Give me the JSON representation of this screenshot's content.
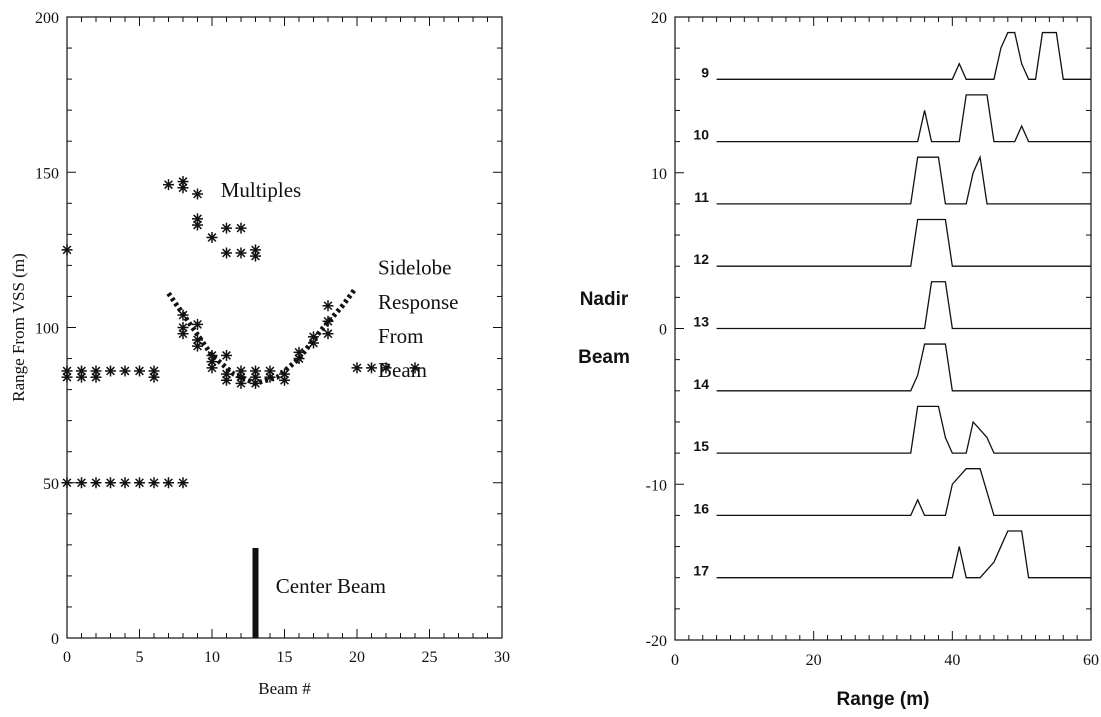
{
  "chart_data": [
    {
      "type": "scatter",
      "xlabel": "Beam #",
      "ylabel": "Range From VSS (m)",
      "xlim": [
        0,
        30
      ],
      "ylim": [
        0,
        200
      ],
      "x_ticks": [
        0,
        5,
        10,
        15,
        20,
        25,
        30
      ],
      "y_ticks": [
        0,
        50,
        100,
        150,
        200
      ],
      "marker": "asterisk",
      "points": [
        [
          0,
          125
        ],
        [
          0,
          50
        ],
        [
          1,
          50
        ],
        [
          2,
          50
        ],
        [
          3,
          50
        ],
        [
          4,
          50
        ],
        [
          5,
          50
        ],
        [
          6,
          50
        ],
        [
          7,
          50
        ],
        [
          8,
          50
        ],
        [
          0,
          86
        ],
        [
          0,
          84
        ],
        [
          1,
          86
        ],
        [
          1,
          84
        ],
        [
          2,
          86
        ],
        [
          2,
          84
        ],
        [
          3,
          86
        ],
        [
          4,
          86
        ],
        [
          5,
          86
        ],
        [
          6,
          86
        ],
        [
          6,
          84
        ],
        [
          7,
          146
        ],
        [
          8,
          147
        ],
        [
          8,
          145
        ],
        [
          9,
          143
        ],
        [
          9,
          135
        ],
        [
          9,
          133
        ],
        [
          10,
          129
        ],
        [
          11,
          132
        ],
        [
          11,
          124
        ],
        [
          12,
          132
        ],
        [
          12,
          124
        ],
        [
          13,
          125
        ],
        [
          13,
          123
        ],
        [
          8,
          104
        ],
        [
          8,
          100
        ],
        [
          8,
          98
        ],
        [
          9,
          101
        ],
        [
          9,
          96
        ],
        [
          9,
          94
        ],
        [
          10,
          91
        ],
        [
          10,
          89
        ],
        [
          10,
          87
        ],
        [
          11,
          91
        ],
        [
          11,
          85
        ],
        [
          11,
          83
        ],
        [
          12,
          86
        ],
        [
          12,
          84
        ],
        [
          12,
          82
        ],
        [
          13,
          86
        ],
        [
          13,
          84
        ],
        [
          13,
          82
        ],
        [
          14,
          86
        ],
        [
          14,
          84
        ],
        [
          15,
          85
        ],
        [
          15,
          83
        ],
        [
          16,
          92
        ],
        [
          16,
          90
        ],
        [
          17,
          97
        ],
        [
          17,
          95
        ],
        [
          18,
          107
        ],
        [
          18,
          102
        ],
        [
          18,
          98
        ],
        [
          20,
          87
        ],
        [
          21,
          87
        ],
        [
          22,
          87
        ],
        [
          24,
          87
        ]
      ],
      "sidelobe_curve": [
        [
          7,
          111
        ],
        [
          8.5,
          101
        ],
        [
          10,
          91
        ],
        [
          11.5,
          85
        ],
        [
          13,
          82
        ],
        [
          14.5,
          84
        ],
        [
          16,
          90
        ],
        [
          17.5,
          99
        ],
        [
          19,
          107
        ],
        [
          19.8,
          112
        ]
      ],
      "center_beam": {
        "x": 13,
        "y_from": 0,
        "y_to": 29
      },
      "annotations": {
        "multiples": "Multiples",
        "sidelobe": [
          "Sidelobe",
          "Response",
          "From",
          "Beam"
        ],
        "center_beam": "Center Beam"
      }
    },
    {
      "type": "line",
      "xlabel": "Range (m)",
      "ylabel": [
        "Nadir",
        "Beam"
      ],
      "xlim": [
        0,
        60
      ],
      "ylim": [
        -20,
        20
      ],
      "x_ticks": [
        0,
        20,
        40,
        60
      ],
      "y_ticks": [
        -20,
        -10,
        0,
        10,
        20
      ],
      "series": [
        {
          "name": "9",
          "baseline": 16,
          "x": [
            6,
            40,
            41,
            42,
            46,
            47,
            48,
            49,
            50,
            51,
            52,
            53,
            54,
            55,
            56,
            60
          ],
          "y": [
            16,
            16,
            17,
            16,
            16,
            18,
            19,
            19,
            17,
            16,
            16,
            19,
            19,
            19,
            16,
            16
          ]
        },
        {
          "name": "10",
          "baseline": 12,
          "x": [
            6,
            35,
            36,
            37,
            41,
            42,
            44,
            45,
            46,
            49,
            50,
            51,
            60
          ],
          "y": [
            12,
            12,
            14,
            12,
            12,
            15,
            15,
            15,
            12,
            12,
            13,
            12,
            12
          ]
        },
        {
          "name": "11",
          "baseline": 8,
          "x": [
            6,
            34,
            35,
            36,
            38,
            39,
            42,
            43,
            44,
            45,
            46,
            60
          ],
          "y": [
            8,
            8,
            11,
            11,
            11,
            8,
            8,
            10,
            11,
            8,
            8,
            8
          ]
        },
        {
          "name": "12",
          "baseline": 4,
          "x": [
            6,
            34,
            35,
            39,
            40,
            60
          ],
          "y": [
            4,
            4,
            7,
            7,
            4,
            4
          ]
        },
        {
          "name": "13",
          "baseline": 0,
          "x": [
            6,
            36,
            37,
            39,
            40,
            60
          ],
          "y": [
            0,
            0,
            3,
            3,
            0,
            0
          ]
        },
        {
          "name": "14",
          "baseline": -4,
          "x": [
            6,
            34,
            35,
            36,
            37,
            39,
            40,
            60
          ],
          "y": [
            -4,
            -4,
            -3,
            -1,
            -1,
            -1,
            -4,
            -4
          ]
        },
        {
          "name": "15",
          "baseline": -8,
          "x": [
            6,
            34,
            35,
            37,
            38,
            39,
            40,
            41,
            42,
            43,
            44,
            45,
            46,
            60
          ],
          "y": [
            -8,
            -8,
            -5,
            -5,
            -5,
            -7,
            -8,
            -8,
            -8,
            -6,
            -6.5,
            -7,
            -8,
            -8
          ]
        },
        {
          "name": "16",
          "baseline": -12,
          "x": [
            6,
            34,
            35,
            36,
            38,
            39,
            40,
            42,
            44,
            46,
            60
          ],
          "y": [
            -12,
            -12,
            -11,
            -12,
            -12,
            -12,
            -10,
            -9,
            -9,
            -12,
            -12
          ]
        },
        {
          "name": "17",
          "baseline": -16,
          "x": [
            6,
            40,
            41,
            42,
            44,
            45,
            46,
            47,
            48,
            49,
            50,
            51,
            60
          ],
          "y": [
            -16,
            -16,
            -14,
            -16,
            -16,
            -15.5,
            -15,
            -14,
            -13,
            -13,
            -13,
            -16,
            -16
          ]
        }
      ]
    }
  ]
}
